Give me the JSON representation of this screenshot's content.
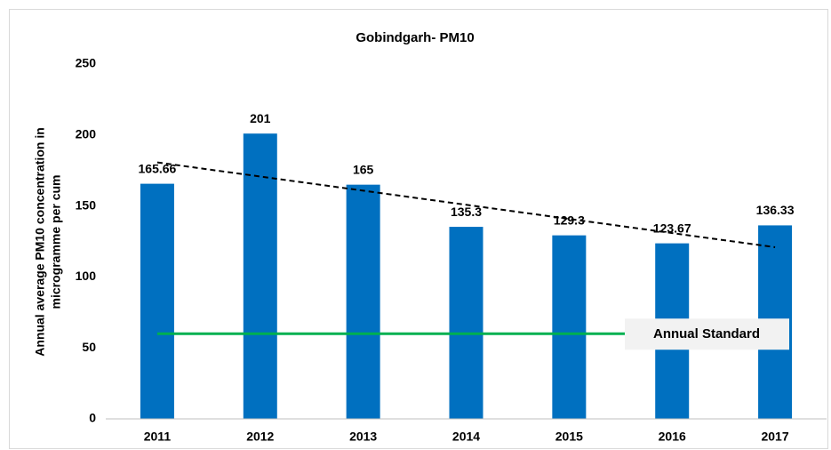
{
  "chart_data": {
    "type": "bar",
    "title": "Gobindgarh- PM10",
    "ylabel": [
      "Annual average PM10 concentration in",
      "microgramme per cum"
    ],
    "categories": [
      "2011",
      "2012",
      "2013",
      "2014",
      "2015",
      "2016",
      "2017"
    ],
    "values": [
      165.66,
      201,
      165,
      135.3,
      129.3,
      123.67,
      136.33
    ],
    "color": "#0070c0",
    "ylim": [
      0,
      250
    ],
    "yticks": [
      0,
      50,
      100,
      150,
      200,
      250
    ],
    "grid": false,
    "trendline": {
      "values": [
        180.7,
        120.95
      ],
      "color": "#000000"
    },
    "standard": {
      "value": 60,
      "label": "Annual Standard",
      "color": "#00b050"
    }
  }
}
